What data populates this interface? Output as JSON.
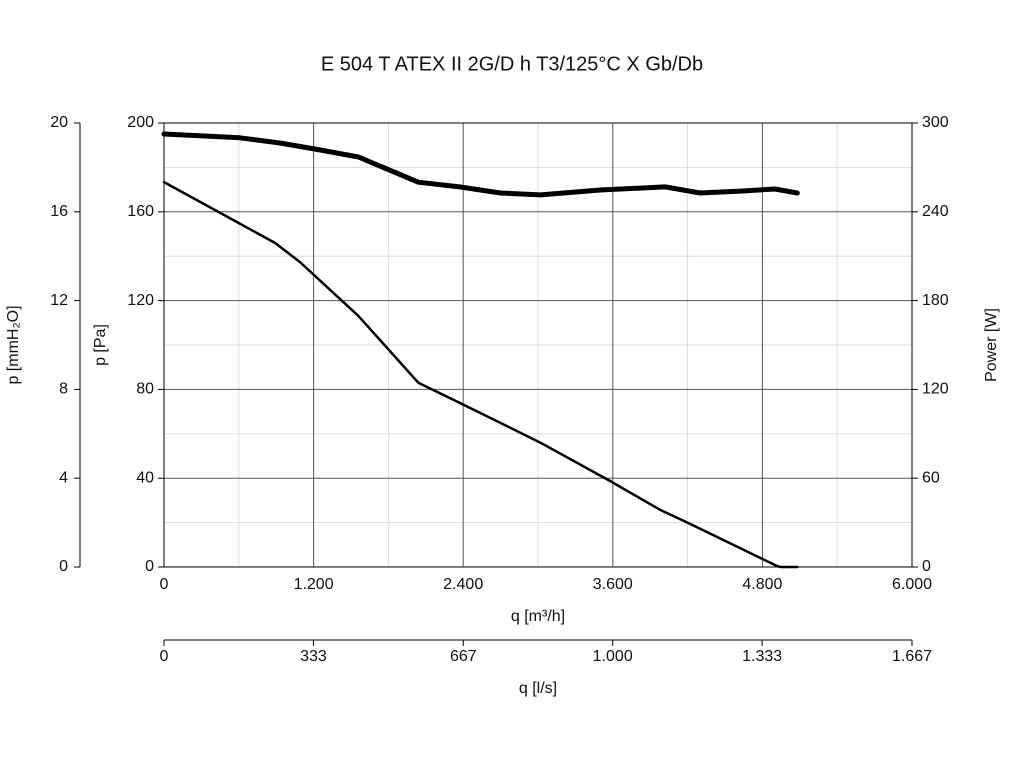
{
  "chart_data": {
    "type": "line",
    "title": "E 504 T ATEX II 2G/D h T3/125°C X Gb/Db",
    "xlabel": "q [m³/h]",
    "ylabel": "p [Pa]",
    "y2label": "Power [W]",
    "y3label": "p [mmH₂O]",
    "x2label": "q [l/s]",
    "xlim": [
      0,
      6000
    ],
    "xticks": [
      0,
      {
        "value": 1200,
        "label": "1.200"
      },
      {
        "value": 2400,
        "label": "2.400"
      },
      {
        "value": 3600,
        "label": "3.600"
      },
      {
        "value": 4800,
        "label": "4.800"
      },
      {
        "value": 6000,
        "label": "6.000"
      }
    ],
    "ylim": [
      0,
      200
    ],
    "yticks": [
      0,
      40,
      80,
      120,
      160,
      200
    ],
    "y2lim": [
      0,
      300
    ],
    "y2ticks": [
      0,
      60,
      120,
      180,
      240,
      300
    ],
    "y3lim": [
      0,
      20
    ],
    "y3ticks": [
      0,
      4,
      8,
      12,
      16,
      20
    ],
    "x2lim": [
      0,
      1667
    ],
    "x2ticks": [
      0,
      333,
      667,
      {
        "value": 1000,
        "label": "1.000"
      },
      {
        "value": 1333,
        "label": "1.333"
      },
      {
        "value": 1667,
        "label": "1.667"
      }
    ],
    "grid": true,
    "series": [
      {
        "color": "#000000",
        "width": 2.5,
        "axis": "y",
        "x": [
          0,
          890,
          1090,
          1560,
          2040,
          2370,
          3020,
          3580,
          3980,
          4220,
          4900,
          4940,
          5080
        ],
        "values": [
          173.4,
          146,
          137.4,
          113,
          83,
          74,
          56,
          38.7,
          25.7,
          19.4,
          0.9,
          0,
          0
        ]
      },
      {
        "color": "#000000",
        "width": 5,
        "axis": "y2",
        "x": [
          0,
          610,
          930,
          1210,
          1560,
          2040,
          2370,
          2700,
          3020,
          3500,
          4020,
          4300,
          4620,
          4900,
          5080
        ],
        "values": [
          292.6,
          290,
          286.5,
          282.4,
          277,
          260,
          256.8,
          252.7,
          251.4,
          254.7,
          256.8,
          252.7,
          254,
          255.4,
          252.7
        ]
      }
    ]
  }
}
